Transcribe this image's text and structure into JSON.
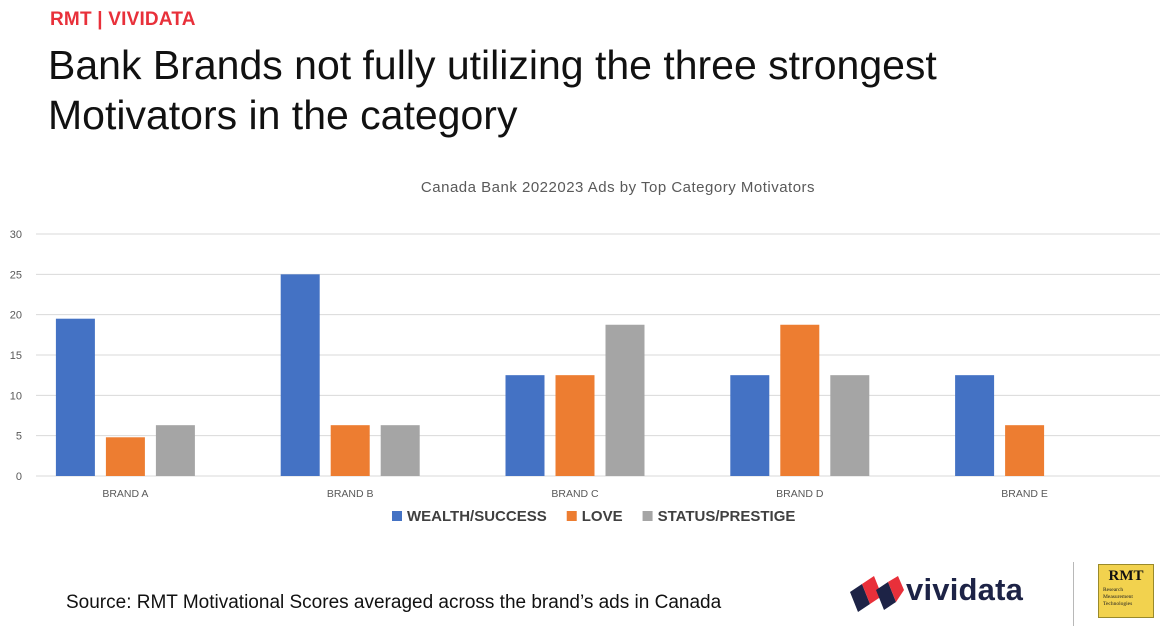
{
  "header": {
    "tag": "RMT | VIVIDATA",
    "title": "Bank Brands not fully utilizing the three strongest Motivators in the category"
  },
  "source_note": "Source: RMT Motivational Scores averaged across the brand’s ads in Canada",
  "logos": {
    "vividata": "vividata",
    "rmt": "RMT",
    "rmt_sub": [
      "Research",
      "Measurement",
      "Technologies"
    ]
  },
  "colors": {
    "wealth": "#4472c4",
    "love": "#ed7d31",
    "status": "#a5a5a5",
    "accent": "#e8303a",
    "logo_navy": "#1d2346"
  },
  "chart_data": {
    "type": "bar",
    "title": "Canada Bank 2022023 Ads by Top Category Motivators",
    "xlabel": "",
    "ylabel": "",
    "categories": [
      "BRAND A",
      "BRAND B",
      "BRAND C",
      "BRAND D",
      "BRAND E"
    ],
    "series": [
      {
        "name": "WEALTH/SUCCESS",
        "color": "#4472c4",
        "values": [
          19.5,
          25,
          12.5,
          12.5,
          12.5
        ]
      },
      {
        "name": "LOVE",
        "color": "#ed7d31",
        "values": [
          4.8,
          6.3,
          12.5,
          18.75,
          6.3
        ]
      },
      {
        "name": "STATUS/PRESTIGE",
        "color": "#a5a5a5",
        "values": [
          6.3,
          6.3,
          18.75,
          12.5,
          0
        ]
      }
    ],
    "ylim": [
      0,
      30
    ],
    "yticks": [
      0,
      5,
      10,
      15,
      20,
      25,
      30
    ],
    "grid": true,
    "legend": "bottom"
  }
}
